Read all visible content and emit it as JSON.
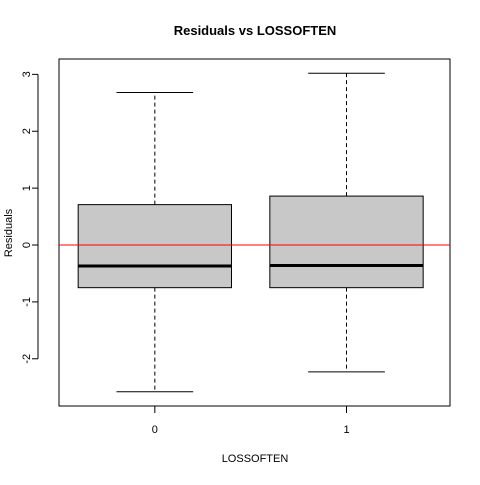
{
  "chart_data": {
    "type": "boxplot",
    "title": "Residuals vs LOSSOFTEN",
    "xlabel": "LOSSOFTEN",
    "ylabel": "Residuals",
    "categories": [
      "0",
      "1"
    ],
    "boxes": [
      {
        "category": "0",
        "whisker_low": -2.58,
        "q1": -0.75,
        "median": -0.37,
        "q3": 0.71,
        "whisker_high": 2.68
      },
      {
        "category": "1",
        "whisker_low": -2.23,
        "q1": -0.75,
        "median": -0.36,
        "q3": 0.86,
        "whisker_high": 3.02
      }
    ],
    "yticks": [
      -2,
      -1,
      0,
      1,
      2,
      3
    ],
    "ylim": [
      -2.83,
      3.27
    ],
    "reference_line": {
      "y": 0,
      "color": "#ff0000"
    },
    "box_fill": "#c8c8c8",
    "grid": false,
    "legend": "none"
  }
}
